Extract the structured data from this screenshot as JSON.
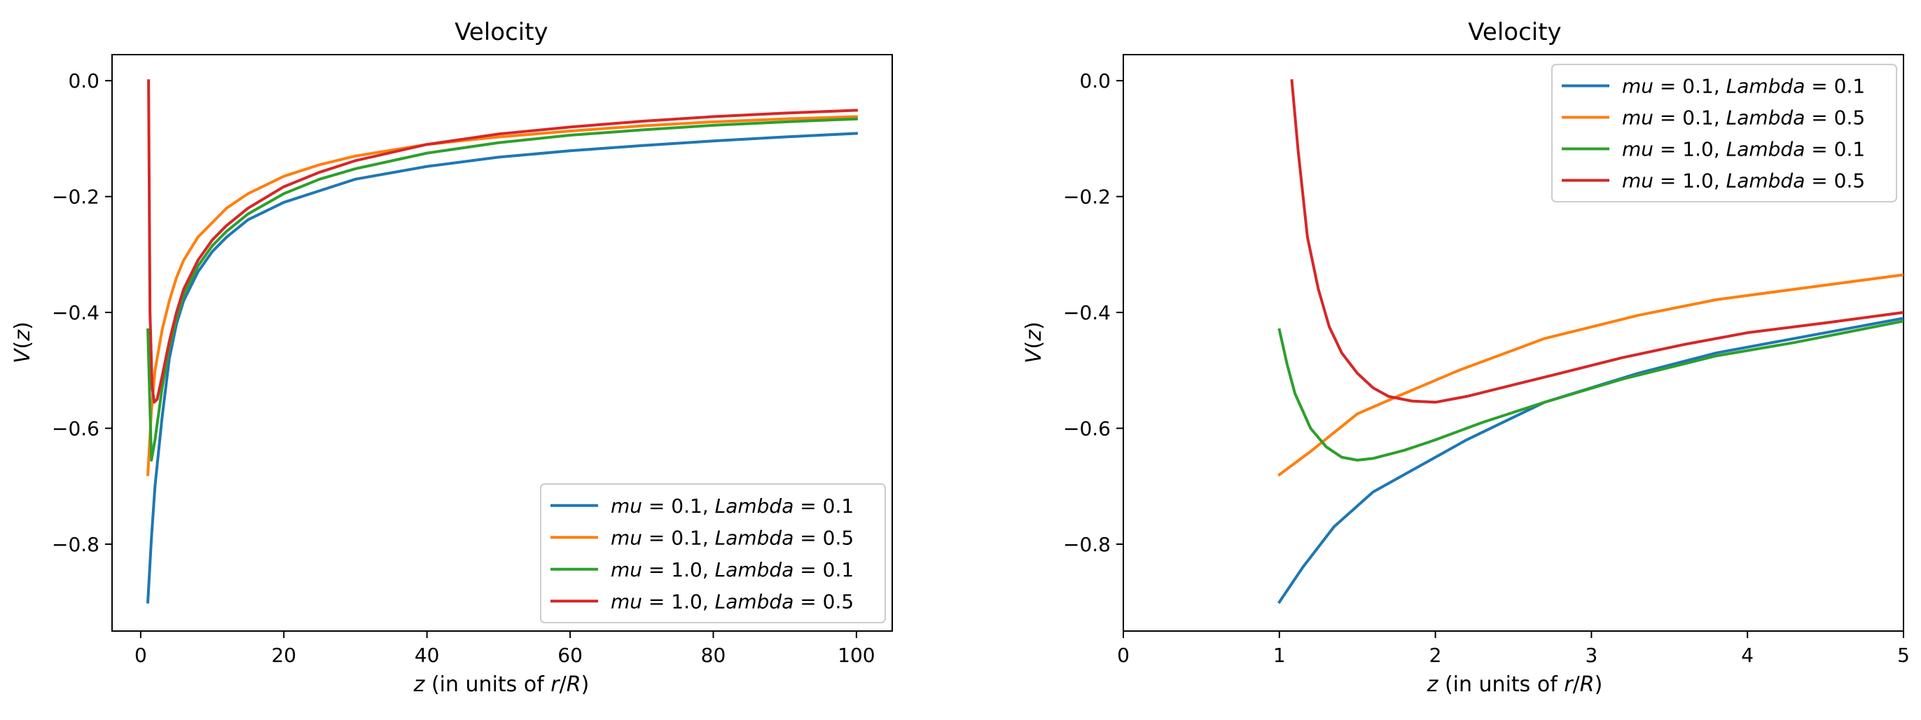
{
  "chart_data": [
    {
      "type": "line",
      "title": "Velocity",
      "xlabel": "z (in units of r/R)",
      "ylabel": "V(z)",
      "xlim": [
        -4,
        105
      ],
      "ylim": [
        -0.95,
        0.045
      ],
      "x_ticks": [
        0,
        20,
        40,
        60,
        80,
        100
      ],
      "x_tick_labels": [
        "0",
        "20",
        "40",
        "60",
        "80",
        "100"
      ],
      "y_ticks": [
        0.0,
        -0.2,
        -0.4,
        -0.6,
        -0.8
      ],
      "y_tick_labels": [
        "0.0",
        "−0.2",
        "−0.4",
        "−0.6",
        "−0.8"
      ],
      "grid": false,
      "legend_position": "lower-right",
      "series": [
        {
          "name": "mu = 0.1, Lambda = 0.1",
          "legend_label": "mu = 0.1, Lambda = 0.1",
          "color": "#1f77b4",
          "x": [
            1,
            1.5,
            2,
            3,
            4,
            5,
            6,
            8,
            10,
            12,
            15,
            20,
            25,
            30,
            40,
            50,
            60,
            70,
            80,
            90,
            100
          ],
          "y": [
            -0.9,
            -0.79,
            -0.7,
            -0.58,
            -0.48,
            -0.42,
            -0.38,
            -0.33,
            -0.295,
            -0.27,
            -0.24,
            -0.21,
            -0.19,
            -0.17,
            -0.148,
            -0.132,
            -0.121,
            -0.112,
            -0.104,
            -0.097,
            -0.091
          ]
        },
        {
          "name": "mu = 0.1, Lambda = 0.5",
          "legend_label": "mu = 0.1, Lambda = 0.5",
          "color": "#ff7f0e",
          "x": [
            1,
            1.5,
            2,
            3,
            4,
            5,
            6,
            8,
            10,
            12,
            15,
            20,
            25,
            30,
            40,
            50,
            60,
            70,
            80,
            90,
            100
          ],
          "y": [
            -0.68,
            -0.57,
            -0.5,
            -0.43,
            -0.38,
            -0.34,
            -0.31,
            -0.27,
            -0.245,
            -0.22,
            -0.195,
            -0.165,
            -0.145,
            -0.13,
            -0.11,
            -0.097,
            -0.087,
            -0.078,
            -0.071,
            -0.066,
            -0.062
          ]
        },
        {
          "name": "mu = 1.0, Lambda = 0.1",
          "legend_label": "mu = 1.0, Lambda = 0.1",
          "color": "#2ca02c",
          "x": [
            1,
            1.5,
            2,
            3,
            4,
            5,
            6,
            8,
            10,
            12,
            15,
            20,
            25,
            30,
            40,
            50,
            60,
            70,
            80,
            90,
            100
          ],
          "y": [
            -0.43,
            -0.655,
            -0.62,
            -0.53,
            -0.46,
            -0.41,
            -0.37,
            -0.32,
            -0.285,
            -0.26,
            -0.23,
            -0.195,
            -0.17,
            -0.152,
            -0.125,
            -0.107,
            -0.094,
            -0.085,
            -0.077,
            -0.071,
            -0.066
          ]
        },
        {
          "name": "mu = 1.0, Lambda = 0.5",
          "legend_label": "mu = 1.0, Lambda = 0.5",
          "color": "#d62728",
          "x": [
            1.1,
            1.3,
            1.6,
            1.9,
            2.3,
            3,
            4,
            5,
            6,
            8,
            10,
            12,
            15,
            20,
            25,
            30,
            40,
            50,
            60,
            70,
            80,
            90,
            100
          ],
          "y": [
            0.0,
            -0.4,
            -0.53,
            -0.555,
            -0.55,
            -0.51,
            -0.45,
            -0.4,
            -0.36,
            -0.31,
            -0.275,
            -0.25,
            -0.22,
            -0.183,
            -0.158,
            -0.138,
            -0.11,
            -0.092,
            -0.08,
            -0.07,
            -0.062,
            -0.056,
            -0.051
          ]
        }
      ]
    },
    {
      "type": "line",
      "title": "Velocity",
      "xlabel": "z (in units of r/R)",
      "ylabel": "V(z)",
      "xlim": [
        0,
        5
      ],
      "ylim": [
        -0.95,
        0.045
      ],
      "x_ticks": [
        0,
        1,
        2,
        3,
        4,
        5
      ],
      "x_tick_labels": [
        "0",
        "1",
        "2",
        "3",
        "4",
        "5"
      ],
      "y_ticks": [
        0.0,
        -0.2,
        -0.4,
        -0.6,
        -0.8
      ],
      "y_tick_labels": [
        "0.0",
        "−0.2",
        "−0.4",
        "−0.6",
        "−0.8"
      ],
      "grid": false,
      "legend_position": "upper-right",
      "series": [
        {
          "name": "mu = 0.1, Lambda = 0.1",
          "legend_label": "mu = 0.1, Lambda = 0.1",
          "color": "#1f77b4",
          "x": [
            1.0,
            1.15,
            1.35,
            1.6,
            1.9,
            2.2,
            2.7,
            3.3,
            3.8,
            4.3,
            5.0
          ],
          "y": [
            -0.9,
            -0.84,
            -0.77,
            -0.71,
            -0.665,
            -0.62,
            -0.555,
            -0.505,
            -0.47,
            -0.445,
            -0.41
          ]
        },
        {
          "name": "mu = 0.1, Lambda = 0.5",
          "legend_label": "mu = 0.1, Lambda = 0.5",
          "color": "#ff7f0e",
          "x": [
            1.0,
            1.2,
            1.5,
            1.8,
            2.15,
            2.7,
            3.3,
            3.8,
            4.3,
            5.0
          ],
          "y": [
            -0.68,
            -0.64,
            -0.575,
            -0.54,
            -0.5,
            -0.445,
            -0.405,
            -0.378,
            -0.36,
            -0.335
          ]
        },
        {
          "name": "mu = 1.0, Lambda = 0.1",
          "legend_label": "mu = 1.0, Lambda = 0.1",
          "color": "#2ca02c",
          "x": [
            1.0,
            1.05,
            1.1,
            1.2,
            1.3,
            1.4,
            1.5,
            1.6,
            1.8,
            2.0,
            2.3,
            2.7,
            3.2,
            3.8,
            4.3,
            5.0
          ],
          "y": [
            -0.43,
            -0.49,
            -0.54,
            -0.6,
            -0.632,
            -0.65,
            -0.655,
            -0.652,
            -0.638,
            -0.62,
            -0.59,
            -0.555,
            -0.515,
            -0.475,
            -0.452,
            -0.415
          ]
        },
        {
          "name": "mu = 1.0, Lambda = 0.5",
          "legend_label": "mu = 1.0, Lambda = 0.5",
          "color": "#d62728",
          "x": [
            1.08,
            1.12,
            1.18,
            1.25,
            1.32,
            1.4,
            1.5,
            1.6,
            1.7,
            1.85,
            2.0,
            2.2,
            2.5,
            2.8,
            3.2,
            3.6,
            4.0,
            4.5,
            5.0
          ],
          "y": [
            0.0,
            -0.12,
            -0.27,
            -0.36,
            -0.425,
            -0.47,
            -0.505,
            -0.53,
            -0.545,
            -0.553,
            -0.555,
            -0.545,
            -0.525,
            -0.505,
            -0.478,
            -0.455,
            -0.435,
            -0.418,
            -0.4
          ]
        }
      ]
    }
  ]
}
